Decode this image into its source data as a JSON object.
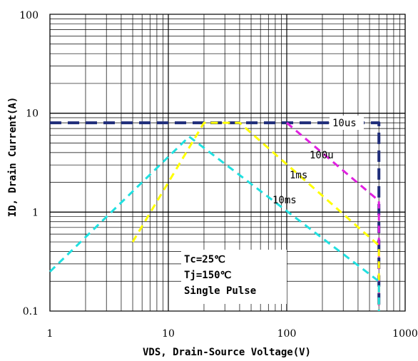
{
  "chart_data": {
    "type": "line",
    "title": "",
    "xlabel": "VDS, Drain-Source Voltage(V)",
    "ylabel": "ID, Drain Current(A)",
    "x_scale": "log",
    "y_scale": "log",
    "xlim": [
      1,
      1000
    ],
    "ylim": [
      0.1,
      100
    ],
    "grid": true,
    "x_ticks": [
      "1",
      "10",
      "100",
      "1000"
    ],
    "y_ticks": [
      "0.1",
      "1",
      "10",
      "100"
    ],
    "series": [
      {
        "label": "10us",
        "color": "#1f2d7a",
        "style": "dashed",
        "width": 4,
        "points": [
          [
            1,
            8
          ],
          [
            600,
            8
          ],
          [
            600,
            0.1
          ]
        ]
      },
      {
        "label": "100u",
        "color": "#e020e0",
        "style": "dashed",
        "width": 3,
        "points": [
          [
            100,
            8
          ],
          [
            600,
            1.3
          ],
          [
            600,
            0.1
          ]
        ]
      },
      {
        "label": "1ms",
        "color": "#ffff00",
        "style": "dashed",
        "width": 3,
        "points": [
          [
            5,
            0.5
          ],
          [
            20,
            8
          ],
          [
            40,
            8
          ],
          [
            600,
            0.46
          ],
          [
            600,
            0.1
          ]
        ]
      },
      {
        "label": "10ms",
        "color": "#20e0e0",
        "style": "dashed",
        "width": 3,
        "points": [
          [
            1,
            0.25
          ],
          [
            15,
            5.8
          ],
          [
            600,
            0.2
          ],
          [
            600,
            0.1
          ]
        ]
      }
    ],
    "annotations": [
      "Tc=25℃",
      "Tj=150℃",
      "Single Pulse"
    ]
  }
}
